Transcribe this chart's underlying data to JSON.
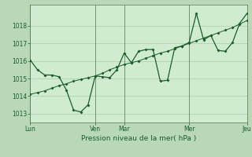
{
  "background_color": "#b8d8b8",
  "plot_bg_color": "#d0ecd0",
  "grid_color": "#9ab89a",
  "line_color": "#1a5c2a",
  "xlabel": "Pression niveau de la mer( hPa )",
  "ylim": [
    1012.5,
    1019.2
  ],
  "yticks": [
    1013,
    1014,
    1015,
    1016,
    1017,
    1018
  ],
  "xtick_labels": [
    "Lun",
    "Ven",
    "Mar",
    "Mer",
    "Jeu"
  ],
  "xtick_positions": [
    0,
    9,
    13,
    22,
    30
  ],
  "vline_positions": [
    0,
    9,
    13,
    22,
    30
  ],
  "line1_x": [
    0,
    1,
    2,
    3,
    4,
    5,
    6,
    7,
    8,
    9,
    10,
    11,
    12,
    13,
    14,
    15,
    16,
    17,
    18,
    19,
    20,
    21,
    22,
    23,
    24,
    25,
    26,
    27,
    28,
    29,
    30
  ],
  "line1_y": [
    1014.1,
    1014.2,
    1014.3,
    1014.45,
    1014.6,
    1014.7,
    1014.85,
    1014.95,
    1015.05,
    1015.15,
    1015.3,
    1015.5,
    1015.65,
    1015.8,
    1015.9,
    1016.0,
    1016.15,
    1016.3,
    1016.45,
    1016.55,
    1016.7,
    1016.85,
    1017.0,
    1017.15,
    1017.3,
    1017.45,
    1017.6,
    1017.75,
    1017.9,
    1018.1,
    1018.3
  ],
  "line2_x": [
    0,
    1,
    2,
    3,
    4,
    5,
    6,
    7,
    8,
    9,
    10,
    11,
    12,
    13,
    14,
    15,
    16,
    17,
    18,
    19,
    20,
    21,
    22,
    23,
    24,
    25,
    26,
    27,
    28,
    29,
    30
  ],
  "line2_y": [
    1016.05,
    1015.5,
    1015.2,
    1015.2,
    1015.1,
    1014.35,
    1013.2,
    1013.1,
    1013.5,
    1015.15,
    1015.1,
    1015.05,
    1015.5,
    1016.45,
    1015.9,
    1016.55,
    1016.65,
    1016.65,
    1014.85,
    1014.9,
    1016.75,
    1016.85,
    1017.05,
    1018.7,
    1017.2,
    1017.45,
    1016.6,
    1016.55,
    1017.05,
    1018.15,
    1018.7
  ],
  "marker_size": 2.0,
  "title_fontsize": 6,
  "tick_fontsize": 5.5,
  "xlabel_fontsize": 6.5
}
